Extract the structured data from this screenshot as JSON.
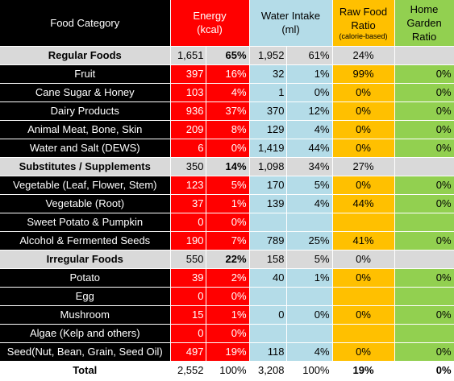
{
  "headers": {
    "category": "Food Category",
    "energy_line1": "Energy",
    "energy_line2": "(kcal)",
    "water_line1": "Water Intake",
    "water_line2": "(ml)",
    "raw_line1": "Raw Food",
    "raw_line2": "Ratio",
    "raw_line3": "(calorie-based)",
    "home_line1": "Home",
    "home_line2": "Garden",
    "home_line3": "Ratio"
  },
  "rows": [
    {
      "type": "group",
      "name": "Regular Foods",
      "energy": "1,651",
      "energy_pct": "65%",
      "water": "1,952",
      "water_pct": "61%",
      "raw": "24%",
      "home": ""
    },
    {
      "type": "item",
      "name": "Fruit",
      "energy": "397",
      "energy_pct": "16%",
      "water": "32",
      "water_pct": "1%",
      "raw": "99%",
      "home": "0%"
    },
    {
      "type": "item",
      "name": "Cane Sugar & Honey",
      "energy": "103",
      "energy_pct": "4%",
      "water": "1",
      "water_pct": "0%",
      "raw": "0%",
      "home": "0%"
    },
    {
      "type": "item",
      "name": "Dairy Products",
      "energy": "936",
      "energy_pct": "37%",
      "water": "370",
      "water_pct": "12%",
      "raw": "0%",
      "home": "0%"
    },
    {
      "type": "item",
      "name": "Animal Meat, Bone, Skin",
      "energy": "209",
      "energy_pct": "8%",
      "water": "129",
      "water_pct": "4%",
      "raw": "0%",
      "home": "0%"
    },
    {
      "type": "item",
      "name": "Water and Salt (DEWS)",
      "energy": "6",
      "energy_pct": "0%",
      "water": "1,419",
      "water_pct": "44%",
      "raw": "0%",
      "home": "0%"
    },
    {
      "type": "group",
      "name": "Substitutes / Supplements",
      "energy": "350",
      "energy_pct": "14%",
      "water": "1,098",
      "water_pct": "34%",
      "raw": "27%",
      "home": ""
    },
    {
      "type": "item",
      "name": "Vegetable (Leaf, Flower, Stem)",
      "energy": "123",
      "energy_pct": "5%",
      "water": "170",
      "water_pct": "5%",
      "raw": "0%",
      "home": "0%"
    },
    {
      "type": "item",
      "name": "Vegetable (Root)",
      "energy": "37",
      "energy_pct": "1%",
      "water": "139",
      "water_pct": "4%",
      "raw": "44%",
      "home": "0%"
    },
    {
      "type": "item",
      "name": "Sweet Potato & Pumpkin",
      "energy": "0",
      "energy_pct": "0%",
      "water": "",
      "water_pct": "",
      "raw": "",
      "home": ""
    },
    {
      "type": "item",
      "name": "Alcohol & Fermented Seeds",
      "energy": "190",
      "energy_pct": "7%",
      "water": "789",
      "water_pct": "25%",
      "raw": "41%",
      "home": "0%"
    },
    {
      "type": "group",
      "name": "Irregular Foods",
      "energy": "550",
      "energy_pct": "22%",
      "water": "158",
      "water_pct": "5%",
      "raw": "0%",
      "home": ""
    },
    {
      "type": "item",
      "name": "Potato",
      "energy": "39",
      "energy_pct": "2%",
      "water": "40",
      "water_pct": "1%",
      "raw": "0%",
      "home": "0%"
    },
    {
      "type": "item",
      "name": "Egg",
      "energy": "0",
      "energy_pct": "0%",
      "water": "",
      "water_pct": "",
      "raw": "",
      "home": ""
    },
    {
      "type": "item",
      "name": "Mushroom",
      "energy": "15",
      "energy_pct": "1%",
      "water": "0",
      "water_pct": "0%",
      "raw": "0%",
      "home": "0%"
    },
    {
      "type": "item",
      "name": "Algae (Kelp and others)",
      "energy": "0",
      "energy_pct": "0%",
      "water": "",
      "water_pct": "",
      "raw": "",
      "home": ""
    },
    {
      "type": "item",
      "name": "Seed(Nut, Bean, Grain, Seed Oil)",
      "energy": "497",
      "energy_pct": "19%",
      "water": "118",
      "water_pct": "4%",
      "raw": "0%",
      "home": "0%"
    },
    {
      "type": "total",
      "name": "Total",
      "energy": "2,552",
      "energy_pct": "100%",
      "water": "3,208",
      "water_pct": "100%",
      "raw": "19%",
      "home": "0%"
    }
  ],
  "colors": {
    "category_bg": "#000000",
    "energy_bg": "#ff0000",
    "water_bg": "#b4dce8",
    "raw_bg": "#ffc000",
    "home_bg": "#92d050",
    "group_bg": "#d9d9d9"
  }
}
